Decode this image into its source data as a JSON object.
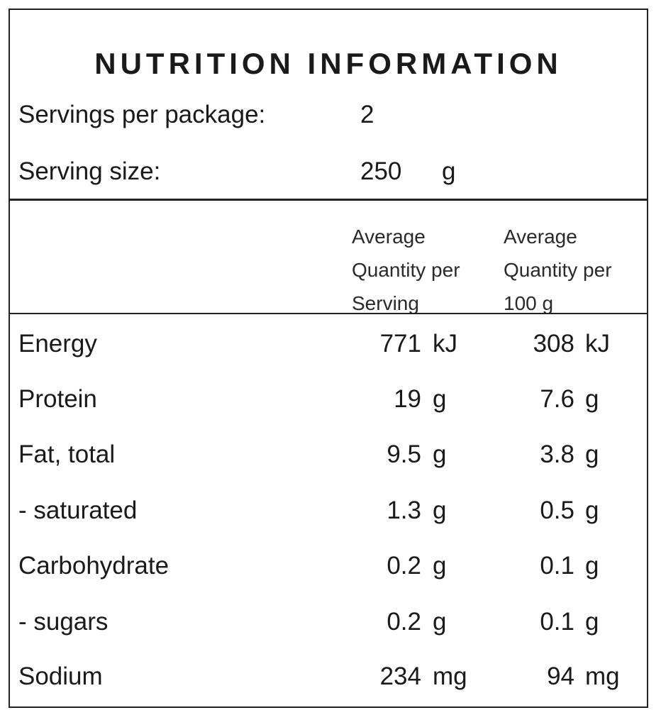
{
  "title": "NUTRITION INFORMATION",
  "servings_per_package": {
    "label": "Servings per package:",
    "value": "2"
  },
  "serving_size": {
    "label": "Serving size:",
    "value": "250",
    "unit": "g"
  },
  "column_headers": {
    "per_serving": [
      "Average",
      "Quantity per",
      "Serving"
    ],
    "per_100g": [
      "Average",
      "Quantity per",
      "100 g"
    ]
  },
  "nutrients": [
    {
      "name": "Energy",
      "per_serving": "771",
      "per_serving_unit": "kJ",
      "per_100g": "308",
      "per_100g_unit": "kJ"
    },
    {
      "name": "Protein",
      "per_serving": "19",
      "per_serving_unit": "g",
      "per_100g": "7.6",
      "per_100g_unit": "g"
    },
    {
      "name": "Fat, total",
      "per_serving": "9.5",
      "per_serving_unit": "g",
      "per_100g": "3.8",
      "per_100g_unit": "g"
    },
    {
      "name": "- saturated",
      "per_serving": "1.3",
      "per_serving_unit": "g",
      "per_100g": "0.5",
      "per_100g_unit": "g"
    },
    {
      "name": "Carbohydrate",
      "per_serving": "0.2",
      "per_serving_unit": "g",
      "per_100g": "0.1",
      "per_100g_unit": "g"
    },
    {
      "name": "- sugars",
      "per_serving": "0.2",
      "per_serving_unit": "g",
      "per_100g": "0.1",
      "per_100g_unit": "g"
    },
    {
      "name": "Sodium",
      "per_serving": "234",
      "per_serving_unit": "mg",
      "per_100g": "94",
      "per_100g_unit": "mg"
    }
  ]
}
